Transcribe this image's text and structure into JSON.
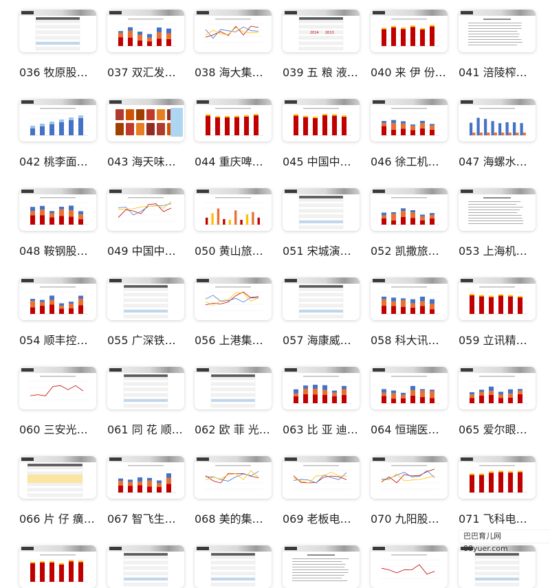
{
  "items": [
    {
      "label": "036 牧原股…",
      "kind": "table"
    },
    {
      "label": "037 双汇发…",
      "kind": "bars_mixed"
    },
    {
      "label": "038 海大集…",
      "kind": "lines"
    },
    {
      "label": "039 五 粮 液…",
      "kind": "table_2014_2013",
      "num_a": "2014",
      "num_b": "2013"
    },
    {
      "label": "040 来 伊 份…",
      "kind": "bars_red"
    },
    {
      "label": "041 涪陵榨…",
      "kind": "text"
    },
    {
      "label": "042 桃李面…",
      "kind": "bars_blue"
    },
    {
      "label": "043 海天味…",
      "kind": "photo"
    },
    {
      "label": "044 重庆啤…",
      "kind": "bars_red"
    },
    {
      "label": "045 中国中…",
      "kind": "bars_red"
    },
    {
      "label": "046 徐工机…",
      "kind": "bars_mixed"
    },
    {
      "label": "047 海螺水…",
      "kind": "bars_blue_sparse"
    },
    {
      "label": "048 鞍钢股…",
      "kind": "bars_mixed"
    },
    {
      "label": "049 中国中…",
      "kind": "lines"
    },
    {
      "label": "050 黄山旅…",
      "kind": "bars_multi"
    },
    {
      "label": "051 宋城演…",
      "kind": "table"
    },
    {
      "label": "052 凯撒旅…",
      "kind": "bars_mixed"
    },
    {
      "label": "053 上海机…",
      "kind": "text"
    },
    {
      "label": "054 顺丰控…",
      "kind": "bars_mixed"
    },
    {
      "label": "055 广深铁…",
      "kind": "table"
    },
    {
      "label": "056 上港集…",
      "kind": "lines"
    },
    {
      "label": "057 海康威…",
      "kind": "table"
    },
    {
      "label": "058 科大讯…",
      "kind": "bars_mixed"
    },
    {
      "label": "059 立讯精…",
      "kind": "bars_red"
    },
    {
      "label": "060 三安光…",
      "kind": "line_single"
    },
    {
      "label": "061 同 花 顺…",
      "kind": "table"
    },
    {
      "label": "062 欧 菲 光…",
      "kind": "table"
    },
    {
      "label": "063 比 亚 迪…",
      "kind": "bars_stack"
    },
    {
      "label": "064 恒瑞医…",
      "kind": "bars_stack"
    },
    {
      "label": "065 爱尔眼…",
      "kind": "bars_mixed"
    },
    {
      "label": "066 片 仔 癀…",
      "kind": "table_yellow"
    },
    {
      "label": "067 智飞生…",
      "kind": "bars_stack"
    },
    {
      "label": "068 美的集…",
      "kind": "lines"
    },
    {
      "label": "069 老板电…",
      "kind": "lines"
    },
    {
      "label": "070 九阳股…",
      "kind": "lines"
    },
    {
      "label": "071 飞科电…",
      "kind": "bars_red"
    },
    {
      "label": "",
      "kind": "bars_red"
    },
    {
      "label": "",
      "kind": "table"
    },
    {
      "label": "",
      "kind": "table"
    },
    {
      "label": "",
      "kind": "text"
    },
    {
      "label": "",
      "kind": "line_single"
    },
    {
      "label": "",
      "kind": "table"
    }
  ],
  "watermark": "巴巴育儿网 88yuer.com",
  "colors": {
    "red": "#c00000",
    "orange": "#e97132",
    "blue": "#4472c4",
    "yellow": "#ffc000",
    "gray": "#a5a5a5"
  }
}
